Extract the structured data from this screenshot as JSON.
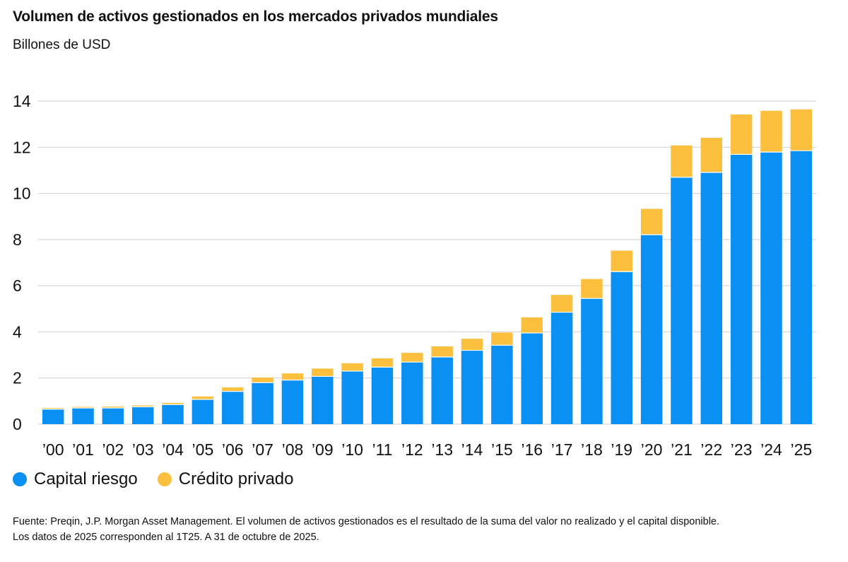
{
  "header": {
    "title": "Volumen de activos gestionados en los mercados privados mundiales",
    "subtitle": "Billones de USD"
  },
  "colors": {
    "capital_riesgo": "#0a8ff2",
    "credito_privado": "#fdbf3e",
    "grid": "#cfcfcf"
  },
  "chart_data": {
    "type": "bar",
    "stacked": true,
    "categories": [
      "’00",
      "’01",
      "’02",
      "’03",
      "’04",
      "’05",
      "’06",
      "’07",
      "’08",
      "’09",
      "’10",
      "’11",
      "’12",
      "’13",
      "’14",
      "’15",
      "’16",
      "’17",
      "’18",
      "’19",
      "’20",
      "’21",
      "’22",
      "’23",
      "’24",
      "’25"
    ],
    "series": [
      {
        "name": "Capital riesgo",
        "values": [
          0.65,
          0.7,
          0.7,
          0.75,
          0.85,
          1.07,
          1.42,
          1.8,
          1.91,
          2.07,
          2.3,
          2.47,
          2.69,
          2.91,
          3.2,
          3.42,
          3.95,
          4.85,
          5.45,
          6.61,
          8.21,
          10.7,
          10.91,
          11.69,
          11.79,
          11.85
        ]
      },
      {
        "name": "Crédito privado",
        "values": [
          0.05,
          0.05,
          0.06,
          0.06,
          0.07,
          0.13,
          0.17,
          0.22,
          0.29,
          0.34,
          0.34,
          0.38,
          0.4,
          0.46,
          0.5,
          0.55,
          0.68,
          0.75,
          0.84,
          0.91,
          1.12,
          1.38,
          1.5,
          1.73,
          1.79,
          1.79
        ]
      }
    ],
    "ylim": [
      0,
      14
    ],
    "yticks": [
      0,
      2,
      4,
      6,
      8,
      10,
      12,
      14
    ],
    "grid": true,
    "legend_position": "bottom-left"
  },
  "legend": {
    "items": [
      {
        "label": "Capital riesgo"
      },
      {
        "label": "Crédito privado"
      }
    ]
  },
  "footnote": {
    "line1": "Fuente: Preqin, J.P. Morgan Asset Management. El volumen de activos gestionados es el resultado de la suma del valor no realizado y el capital disponible.",
    "line2": "Los datos de 2025 corresponden al 1T25. A 31 de octubre de 2025."
  }
}
